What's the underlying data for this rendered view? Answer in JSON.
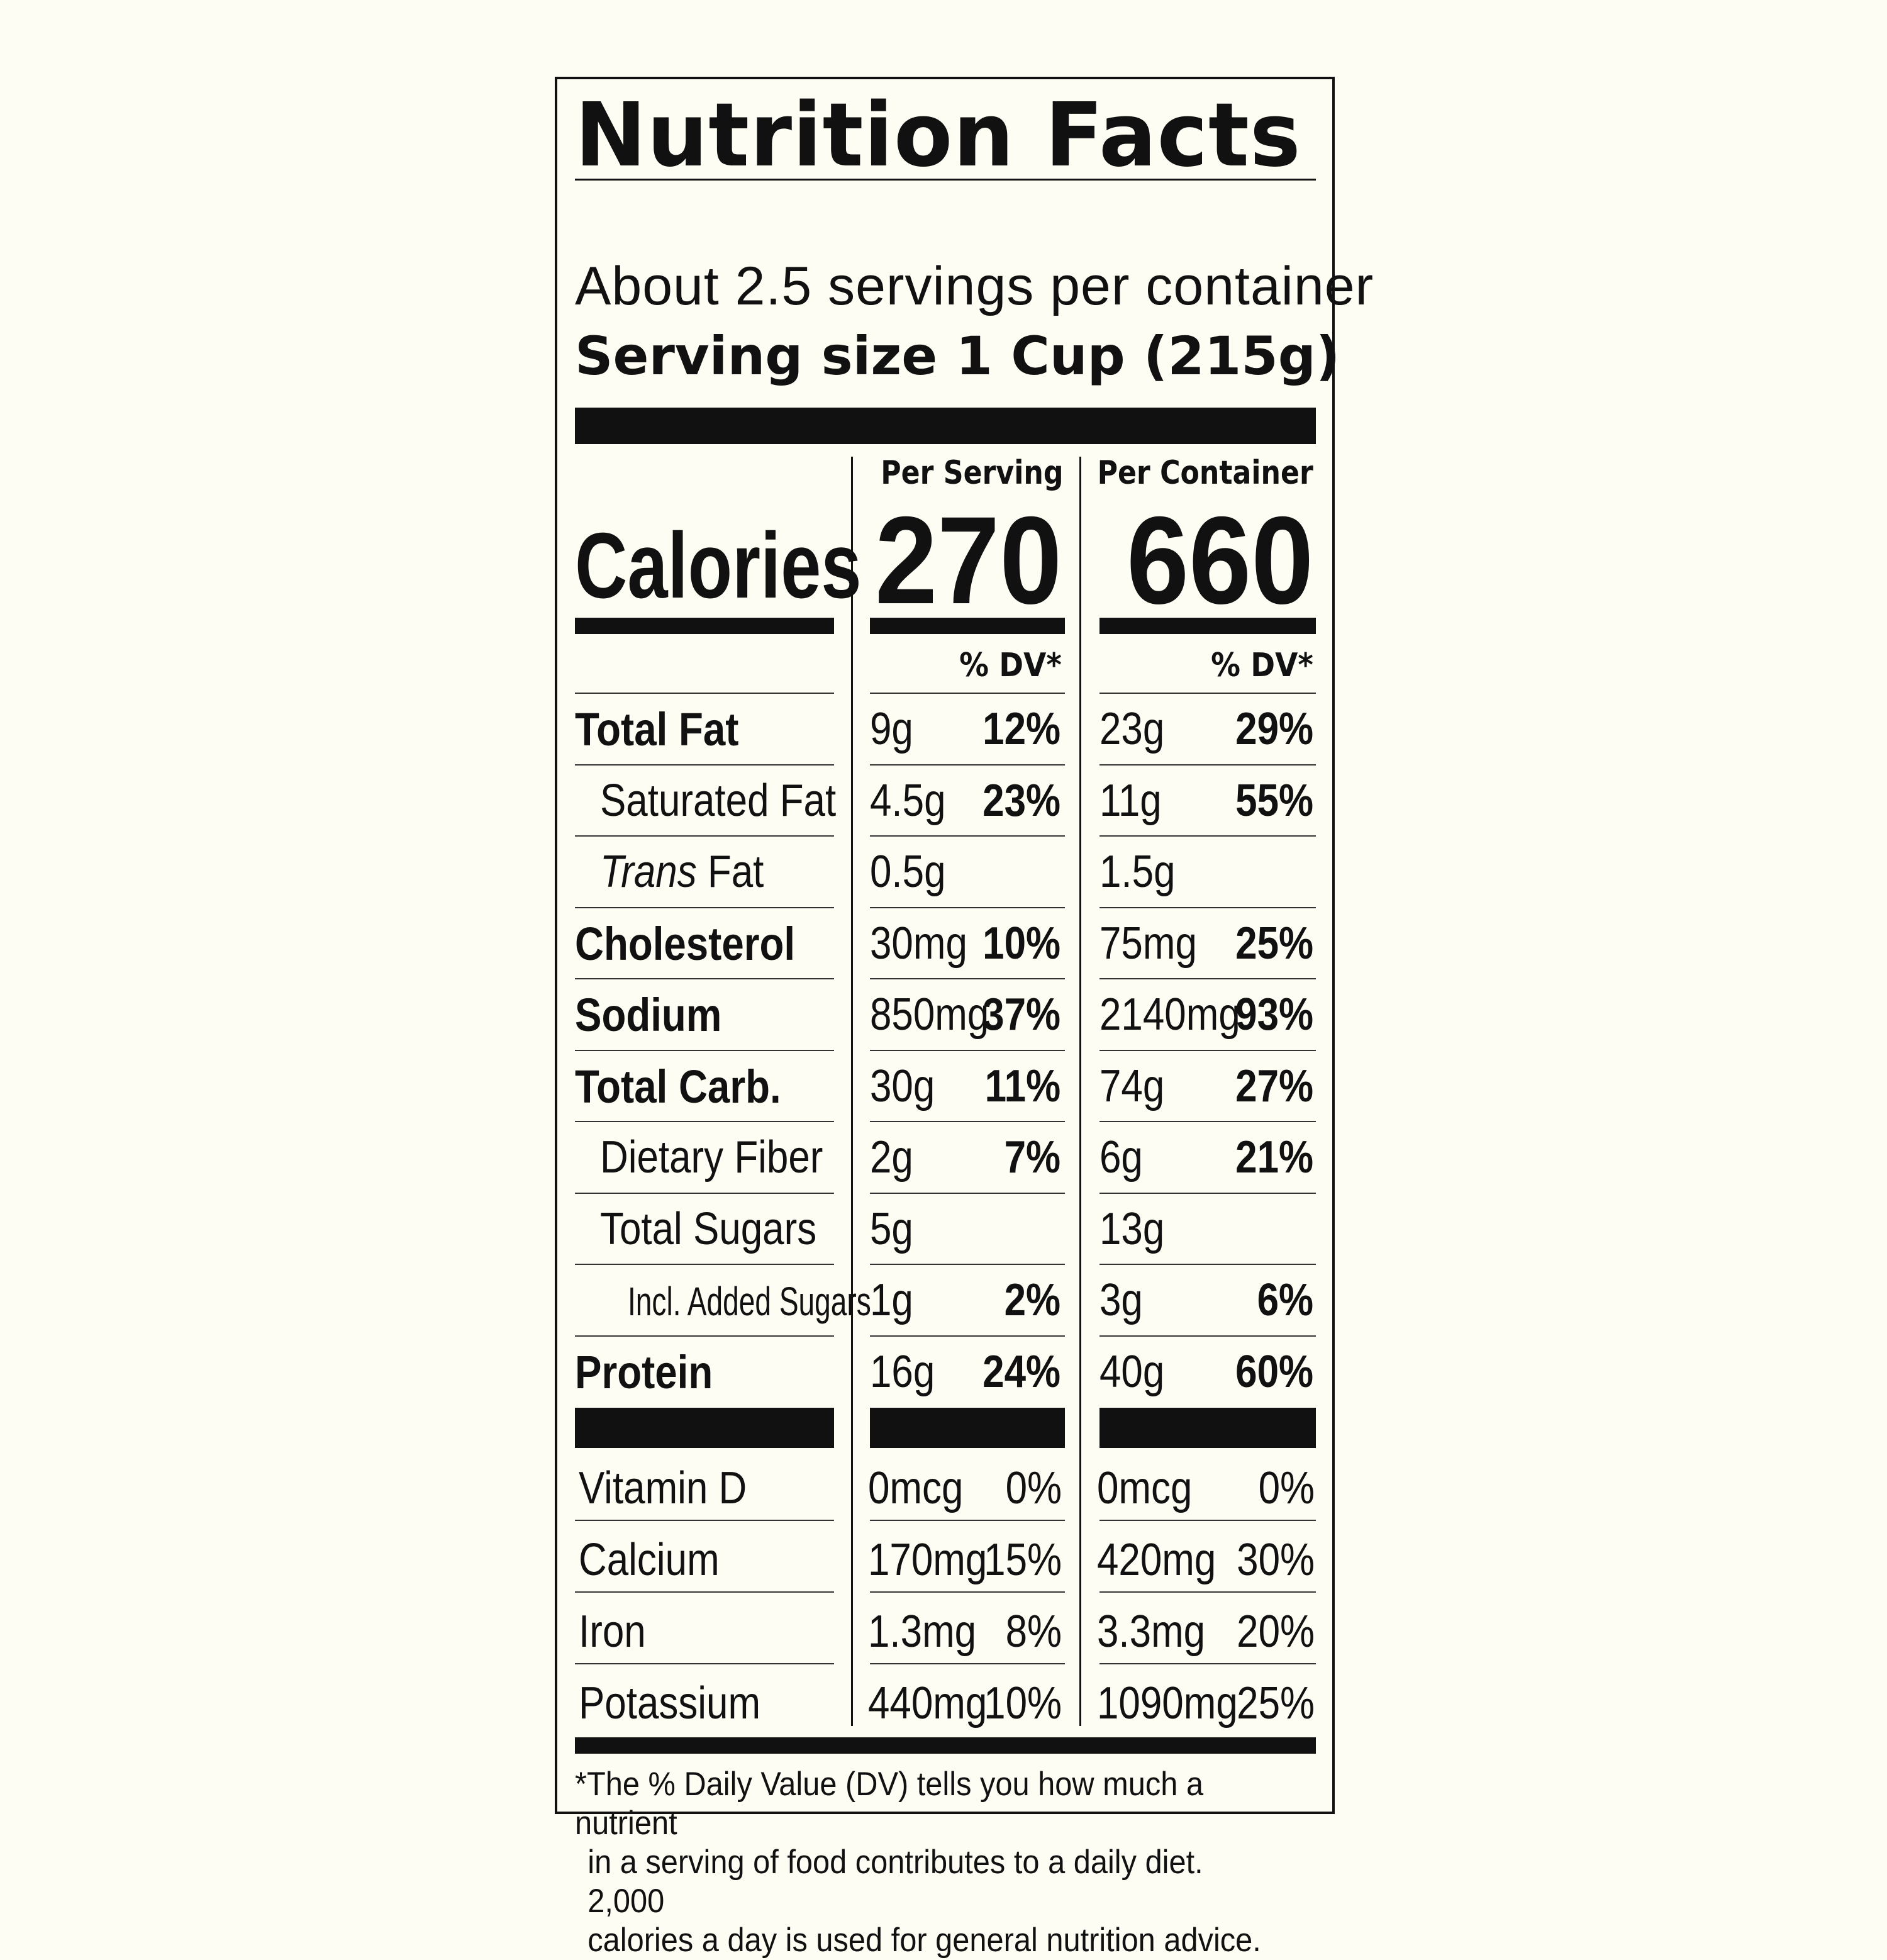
{
  "title": "Nutrition Facts",
  "servings_per_container": "About 2.5 servings per container",
  "serving_size": "Serving size 1 Cup (215g)",
  "columns": {
    "per_serving": "Per Serving",
    "per_container": "Per Container"
  },
  "calories": {
    "label": "Calories",
    "per_serving": "270",
    "per_container": "660"
  },
  "dv_header": "% DV*",
  "nutrients": [
    {
      "label": "Total Fat",
      "style": "bold",
      "serving_amount": "9g",
      "serving_dv": "12%",
      "container_amount": "23g",
      "container_dv": "29%"
    },
    {
      "label": "Saturated Fat",
      "style": "indent",
      "serving_amount": "4.5g",
      "serving_dv": "23%",
      "container_amount": "11g",
      "container_dv": "55%"
    },
    {
      "label_italic": "Trans",
      "label": " Fat",
      "style": "indent",
      "serving_amount": "0.5g",
      "serving_dv": "",
      "container_amount": "1.5g",
      "container_dv": ""
    },
    {
      "label": "Cholesterol",
      "style": "bold",
      "serving_amount": "30mg",
      "serving_dv": "10%",
      "container_amount": "75mg",
      "container_dv": "25%"
    },
    {
      "label": "Sodium",
      "style": "bold",
      "serving_amount": "850mg",
      "serving_dv": "37%",
      "container_amount": "2140mg",
      "container_dv": "93%"
    },
    {
      "label": "Total Carb.",
      "style": "bold",
      "serving_amount": "30g",
      "serving_dv": "11%",
      "container_amount": "74g",
      "container_dv": "27%"
    },
    {
      "label": "Dietary Fiber",
      "style": "indent",
      "serving_amount": "2g",
      "serving_dv": "7%",
      "container_amount": "6g",
      "container_dv": "21%"
    },
    {
      "label": "Total Sugars",
      "style": "indent",
      "serving_amount": "5g",
      "serving_dv": "",
      "container_amount": "13g",
      "container_dv": ""
    },
    {
      "label": "Incl. Added Sugars",
      "style": "small",
      "serving_amount": "1g",
      "serving_dv": "2%",
      "container_amount": "3g",
      "container_dv": "6%"
    },
    {
      "label": "Protein",
      "style": "bold",
      "serving_amount": "16g",
      "serving_dv": "24%",
      "container_amount": "40g",
      "container_dv": "60%"
    }
  ],
  "vitamins": [
    {
      "label": "Vitamin D",
      "serving_amount": "0mcg",
      "serving_dv": "0%",
      "container_amount": "0mcg",
      "container_dv": "0%"
    },
    {
      "label": "Calcium",
      "serving_amount": "170mg",
      "serving_dv": "15%",
      "container_amount": "420mg",
      "container_dv": "30%"
    },
    {
      "label": "Iron",
      "serving_amount": "1.3mg",
      "serving_dv": "8%",
      "container_amount": "3.3mg",
      "container_dv": "20%"
    },
    {
      "label": "Potassium",
      "serving_amount": "440mg",
      "serving_dv": "10%",
      "container_amount": "1090mg",
      "container_dv": "25%"
    }
  ],
  "footnote": [
    "*The % Daily Value (DV) tells you how much a nutrient",
    "in a serving of food contributes to a daily diet. 2,000",
    "calories a day is used for general nutrition advice."
  ]
}
